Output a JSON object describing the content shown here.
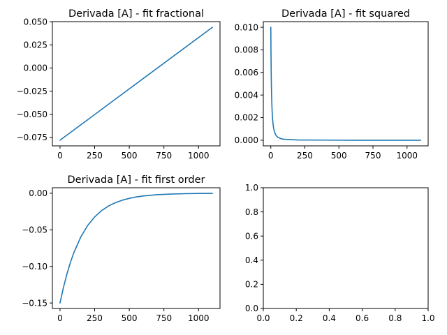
{
  "chart_data": [
    {
      "type": "line",
      "title": "Derivada [A] - fit fractional",
      "xlabel": "",
      "ylabel": "",
      "xlim": [
        -55,
        1155
      ],
      "ylim": [
        -0.0841,
        0.0501
      ],
      "xticks": [
        0,
        250,
        500,
        750,
        1000
      ],
      "xtick_labels": [
        "0",
        "250",
        "500",
        "750",
        "1000"
      ],
      "yticks": [
        -0.075,
        -0.05,
        -0.025,
        0.0,
        0.025,
        0.05
      ],
      "ytick_labels": [
        "−0.075",
        "−0.050",
        "−0.025",
        "0.000",
        "0.025",
        "0.050"
      ],
      "grid": false,
      "color": "#1f77b4",
      "series": [
        {
          "x": [
            0,
            1100
          ],
          "y": [
            -0.078,
            0.044
          ]
        }
      ]
    },
    {
      "type": "line",
      "title": "Derivada [A] - fit squared",
      "xlabel": "",
      "ylabel": "",
      "xlim": [
        -55,
        1155
      ],
      "ylim": [
        -0.0005,
        0.0105
      ],
      "xticks": [
        0,
        250,
        500,
        750,
        1000
      ],
      "xtick_labels": [
        "0",
        "250",
        "500",
        "750",
        "1000"
      ],
      "yticks": [
        0.0,
        0.002,
        0.004,
        0.006,
        0.008,
        0.01
      ],
      "ytick_labels": [
        "0.000",
        "0.002",
        "0.004",
        "0.006",
        "0.008",
        "0.010"
      ],
      "grid": false,
      "color": "#1f77b4",
      "series": [
        {
          "x": [
            0,
            1,
            2,
            3,
            4,
            5,
            6,
            8,
            10,
            12,
            15,
            20,
            25,
            30,
            40,
            50,
            75,
            100,
            200,
            400,
            600,
            800,
            1000,
            1100
          ],
          "y": [
            0.01,
            0.00826,
            0.00694,
            0.00592,
            0.0051,
            0.00444,
            0.00391,
            0.00309,
            0.0025,
            0.00207,
            0.0016,
            0.00111,
            0.00082,
            0.00063,
            0.0004,
            0.00028,
            0.00013,
            8e-05,
            2e-05,
            1e-05,
            0.0,
            0.0,
            0.0,
            0.0
          ]
        }
      ]
    },
    {
      "type": "line",
      "title": "Derivada [A] - fit first order",
      "xlabel": "",
      "ylabel": "",
      "xlim": [
        -55,
        1155
      ],
      "ylim": [
        -0.1575,
        0.0075
      ],
      "xticks": [
        0,
        250,
        500,
        750,
        1000
      ],
      "xtick_labels": [
        "0",
        "250",
        "500",
        "750",
        "1000"
      ],
      "yticks": [
        -0.15,
        -0.1,
        -0.05,
        0.0
      ],
      "ytick_labels": [
        "−0.15",
        "−0.10",
        "−0.05",
        "0.00"
      ],
      "grid": false,
      "color": "#1f77b4",
      "series": [
        {
          "x": [
            0,
            25,
            50,
            75,
            100,
            150,
            200,
            250,
            300,
            350,
            400,
            450,
            500,
            550,
            600,
            700,
            800,
            900,
            1000,
            1100
          ],
          "y": [
            -0.15,
            -0.1287,
            -0.1104,
            -0.0947,
            -0.0812,
            -0.0598,
            -0.044,
            -0.0324,
            -0.0238,
            -0.0175,
            -0.0129,
            -0.0095,
            -0.007,
            -0.0051,
            -0.0038,
            -0.002,
            -0.0011,
            -0.0006,
            -0.0003,
            -0.0002
          ]
        }
      ]
    },
    {
      "type": "line",
      "title": "",
      "xlabel": "",
      "ylabel": "",
      "xlim": [
        0.0,
        1.0
      ],
      "ylim": [
        0.0,
        1.0
      ],
      "xticks": [
        0.0,
        0.2,
        0.4,
        0.6,
        0.8,
        1.0
      ],
      "xtick_labels": [
        "0.0",
        "0.2",
        "0.4",
        "0.6",
        "0.8",
        "1.0"
      ],
      "yticks": [
        0.0,
        0.2,
        0.4,
        0.6,
        0.8,
        1.0
      ],
      "ytick_labels": [
        "0.0",
        "0.2",
        "0.4",
        "0.6",
        "0.8",
        "1.0"
      ],
      "grid": false,
      "color": "#1f77b4",
      "series": []
    }
  ]
}
